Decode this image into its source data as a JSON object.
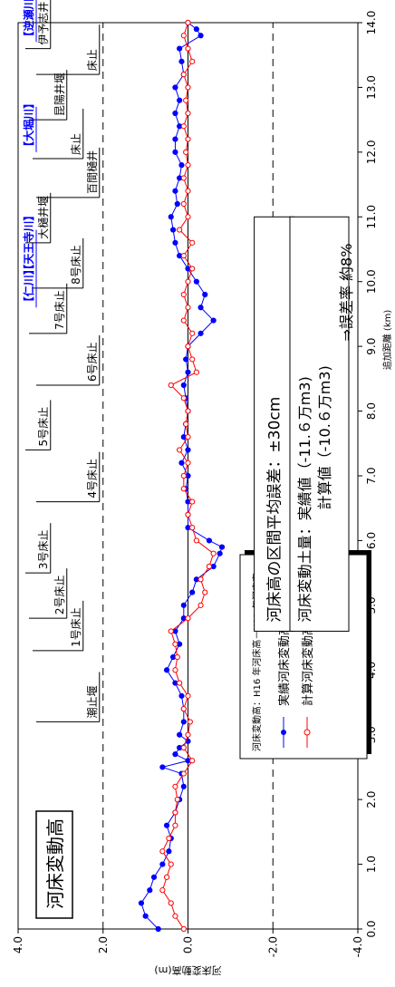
{
  "chart_data": {
    "type": "line",
    "title": "河床変動高",
    "xlabel": "追加距離 (km)",
    "ylabel": "河床変動高(m)",
    "xlim": [
      0.0,
      14.0
    ],
    "ylim": [
      -4.0,
      4.0
    ],
    "x_ticks": [
      "0.0",
      "1.0",
      "2.0",
      "3.0",
      "4.0",
      "5.0",
      "6.0",
      "7.0",
      "8.0",
      "9.0",
      "10.0",
      "11.0",
      "12.0",
      "13.0",
      "14.0"
    ],
    "y_ticks": [
      "4.0",
      "2.0",
      "0.0",
      "-2.0",
      "-4.0"
    ],
    "reference_lines": [
      {
        "y": 2.0,
        "style": "dashed"
      },
      {
        "y": 0.0,
        "style": "solid"
      },
      {
        "y": -2.0,
        "style": "dashed"
      }
    ],
    "legend": {
      "title": "河床変動高：H16 年河床高－H12 年河床高",
      "placement": "bottom-left"
    },
    "series": [
      {
        "name": "実績河床変動高",
        "color": "#0000ff",
        "marker": "filled-circle",
        "points": [
          [
            0.0,
            0.7
          ],
          [
            0.2,
            1.0
          ],
          [
            0.4,
            1.1
          ],
          [
            0.6,
            0.9
          ],
          [
            0.8,
            0.8
          ],
          [
            1.0,
            0.6
          ],
          [
            1.2,
            0.45
          ],
          [
            1.4,
            0.4
          ],
          [
            1.6,
            0.5
          ],
          [
            1.8,
            0.3
          ],
          [
            2.0,
            0.2
          ],
          [
            2.2,
            0.1
          ],
          [
            2.4,
            0.15
          ],
          [
            2.5,
            0.6
          ],
          [
            2.6,
            0.0
          ],
          [
            2.7,
            0.3
          ],
          [
            2.8,
            0.2
          ],
          [
            2.9,
            0.0
          ],
          [
            3.0,
            0.2
          ],
          [
            3.2,
            0.1
          ],
          [
            3.4,
            0.1
          ],
          [
            3.6,
            0.15
          ],
          [
            3.8,
            0.3
          ],
          [
            4.0,
            0.5
          ],
          [
            4.2,
            0.35
          ],
          [
            4.4,
            0.2
          ],
          [
            4.6,
            0.3
          ],
          [
            4.8,
            0.1
          ],
          [
            5.0,
            0.1
          ],
          [
            5.2,
            -0.1
          ],
          [
            5.4,
            -0.2
          ],
          [
            5.6,
            -0.6
          ],
          [
            5.8,
            -0.75
          ],
          [
            5.9,
            -0.8
          ],
          [
            6.0,
            -0.5
          ],
          [
            6.2,
            0.0
          ],
          [
            6.4,
            0.0
          ],
          [
            6.6,
            0.0
          ],
          [
            6.8,
            0.05
          ],
          [
            7.0,
            0.0
          ],
          [
            7.2,
            0.15
          ],
          [
            7.4,
            0.0
          ],
          [
            7.6,
            0.1
          ],
          [
            7.8,
            0.05
          ],
          [
            8.0,
            0.0
          ],
          [
            8.2,
            0.05
          ],
          [
            8.4,
            0.1
          ],
          [
            8.6,
            0.0
          ],
          [
            8.8,
            0.05
          ],
          [
            9.0,
            0.0
          ],
          [
            9.2,
            -0.3
          ],
          [
            9.4,
            -0.6
          ],
          [
            9.6,
            -0.3
          ],
          [
            9.8,
            -0.4
          ],
          [
            10.0,
            -0.2
          ],
          [
            10.2,
            0.0
          ],
          [
            10.4,
            0.2
          ],
          [
            10.6,
            0.3
          ],
          [
            10.8,
            0.35
          ],
          [
            11.0,
            0.4
          ],
          [
            11.2,
            0.25
          ],
          [
            11.4,
            0.3
          ],
          [
            11.6,
            0.2
          ],
          [
            11.8,
            0.15
          ],
          [
            12.0,
            0.3
          ],
          [
            12.2,
            0.3
          ],
          [
            12.4,
            0.2
          ],
          [
            12.6,
            0.3
          ],
          [
            12.8,
            0.2
          ],
          [
            13.0,
            0.3
          ],
          [
            13.2,
            0.1
          ],
          [
            13.4,
            0.15
          ],
          [
            13.6,
            0.2
          ],
          [
            13.8,
            -0.3
          ],
          [
            13.9,
            -0.2
          ],
          [
            14.0,
            0.0
          ]
        ]
      },
      {
        "name": "計算河床変動高",
        "color": "#ff0000",
        "marker": "open-circle",
        "points": [
          [
            0.0,
            0.1
          ],
          [
            0.2,
            0.3
          ],
          [
            0.4,
            0.4
          ],
          [
            0.6,
            0.6
          ],
          [
            0.8,
            0.5
          ],
          [
            1.0,
            0.4
          ],
          [
            1.2,
            0.6
          ],
          [
            1.4,
            0.45
          ],
          [
            1.6,
            0.3
          ],
          [
            1.8,
            0.3
          ],
          [
            2.0,
            0.25
          ],
          [
            2.2,
            0.3
          ],
          [
            2.4,
            0.1
          ],
          [
            2.6,
            -0.1
          ],
          [
            2.8,
            0.1
          ],
          [
            3.0,
            0.0
          ],
          [
            3.2,
            -0.05
          ],
          [
            3.4,
            0.1
          ],
          [
            3.6,
            0.0
          ],
          [
            3.8,
            0.2
          ],
          [
            4.0,
            0.3
          ],
          [
            4.2,
            0.25
          ],
          [
            4.4,
            0.3
          ],
          [
            4.6,
            0.4
          ],
          [
            4.8,
            0.0
          ],
          [
            5.0,
            -0.3
          ],
          [
            5.2,
            -0.4
          ],
          [
            5.4,
            -0.3
          ],
          [
            5.6,
            -0.5
          ],
          [
            5.8,
            -0.6
          ],
          [
            6.0,
            -0.2
          ],
          [
            6.2,
            -0.1
          ],
          [
            6.4,
            0.0
          ],
          [
            6.6,
            -0.1
          ],
          [
            6.8,
            0.1
          ],
          [
            7.0,
            0.1
          ],
          [
            7.2,
            0.0
          ],
          [
            7.4,
            0.2
          ],
          [
            7.6,
            0.0
          ],
          [
            7.8,
            0.05
          ],
          [
            8.0,
            0.0
          ],
          [
            8.2,
            0.1
          ],
          [
            8.4,
            0.4
          ],
          [
            8.6,
            -0.2
          ],
          [
            8.8,
            -0.1
          ],
          [
            9.0,
            0.0
          ],
          [
            9.2,
            -0.1
          ],
          [
            9.4,
            0.1
          ],
          [
            9.6,
            0.0
          ],
          [
            9.8,
            0.1
          ],
          [
            10.0,
            0.0
          ],
          [
            10.2,
            -0.1
          ],
          [
            10.4,
            0.1
          ],
          [
            10.6,
            -0.1
          ],
          [
            10.8,
            0.2
          ],
          [
            11.0,
            0.0
          ],
          [
            11.2,
            0.1
          ],
          [
            11.4,
            0.0
          ],
          [
            11.6,
            0.1
          ],
          [
            11.8,
            0.0
          ],
          [
            12.0,
            0.05
          ],
          [
            12.2,
            0.0
          ],
          [
            12.4,
            0.1
          ],
          [
            12.6,
            0.0
          ],
          [
            12.8,
            0.05
          ],
          [
            13.0,
            0.0
          ],
          [
            13.2,
            0.1
          ],
          [
            13.4,
            -0.1
          ],
          [
            13.6,
            0.0
          ],
          [
            13.8,
            0.1
          ],
          [
            14.0,
            0.0
          ]
        ]
      }
    ]
  },
  "structures": [
    {
      "label": "潮止堰",
      "km": 3.2,
      "depth": 0,
      "type": "weir"
    },
    {
      "label": "1号床止",
      "km": 4.3,
      "depth": 1,
      "type": "sill"
    },
    {
      "label": "2号床止",
      "km": 4.8,
      "depth": 2,
      "type": "sill"
    },
    {
      "label": "3号床止",
      "km": 5.5,
      "depth": 3,
      "type": "sill"
    },
    {
      "label": "4号床止",
      "km": 6.6,
      "depth": 0,
      "type": "sill"
    },
    {
      "label": "5号床止",
      "km": 7.4,
      "depth": 3,
      "type": "sill"
    },
    {
      "label": "6号床止",
      "km": 8.4,
      "depth": 0,
      "type": "sill"
    },
    {
      "label": "7号床止",
      "km": 9.2,
      "depth": 2,
      "type": "sill"
    },
    {
      "label": "8号床止",
      "km": 9.9,
      "depth": 1,
      "type": "sill"
    },
    {
      "label": "大樋井堰",
      "km": 10.6,
      "depth": 3,
      "type": "weir"
    },
    {
      "label": "百間樋井",
      "km": 11.3,
      "depth": 0,
      "type": "weir"
    },
    {
      "label": "床止",
      "km": 11.9,
      "depth": 1,
      "type": "sill"
    },
    {
      "label": "昆陽井堰",
      "km": 12.5,
      "depth": 2,
      "type": "weir"
    },
    {
      "label": "床止",
      "km": 13.2,
      "depth": 0,
      "type": "sill"
    },
    {
      "label": "伊予志井",
      "km": 13.6,
      "depth": 3,
      "type": "weir"
    }
  ],
  "rivers": [
    {
      "label": "【仁川】",
      "km": 9.6
    },
    {
      "label": "【天王寺川】",
      "km": 10.1
    },
    {
      "label": "【大堀川】",
      "km": 12.0
    },
    {
      "label": "【逆瀬川】",
      "km": 13.7
    }
  ],
  "info_box1": {
    "text": "河床高の区間平均誤差：±30cm"
  },
  "info_box2": {
    "line1": "河床変動土量：実績値（-11.６万m3)",
    "line2": "計算値（-10.６万m3)",
    "line3": "⇒誤差率 約8%"
  },
  "colors": {
    "river_label": "#0000ff",
    "observed": "#0000ff",
    "calculated": "#ff0000"
  }
}
